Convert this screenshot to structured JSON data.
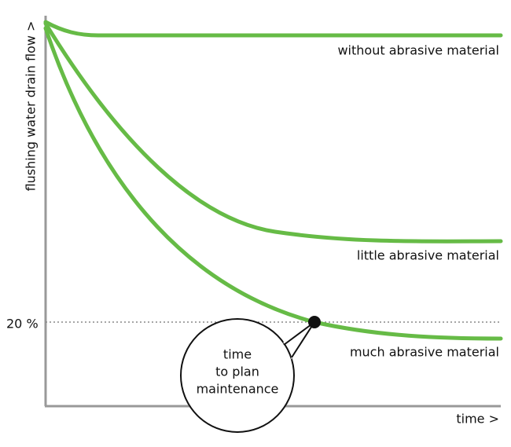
{
  "axes": {
    "y_label": "flushing water drain flow >",
    "x_label": "time >"
  },
  "reference_line": {
    "label": "20 %"
  },
  "curves": [
    {
      "label": "without abrasive material"
    },
    {
      "label": "little abrasive material"
    },
    {
      "label": "much abrasive material"
    }
  ],
  "callout": {
    "lines": [
      "time",
      "to plan",
      "maintenance"
    ]
  }
}
